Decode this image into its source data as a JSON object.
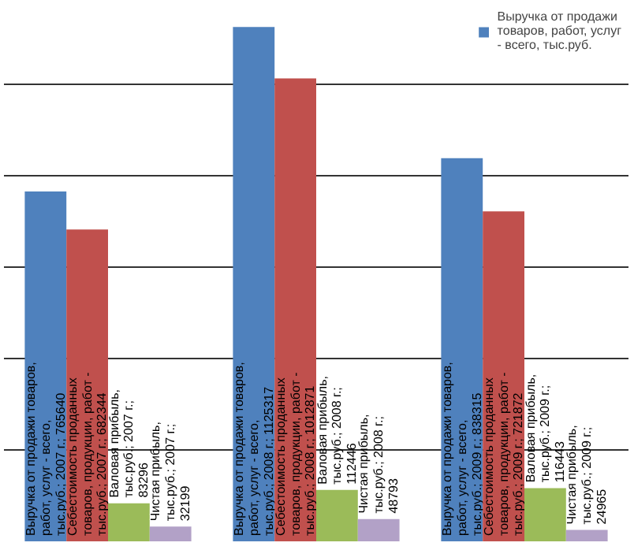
{
  "chart_data": {
    "type": "bar",
    "categories": [
      null,
      null,
      null
    ],
    "series": [
      {
        "name": "Выручка от продажи товаров, работ, услуг - всего, тыс.руб.",
        "color": "#4f81bd",
        "values": [
          765640,
          1125317,
          838315
        ],
        "value_labels": [
          "Выручка от продажи товаров, работ, услуг - всего, тыс.руб.; 2007 г.; 765640",
          "Выручка от продажи товаров, работ, услуг - всего, тыс.руб.; 2008 г.; 1125317",
          "Выручка от продажи товаров, работ, услуг - всего, тыс.руб.; 2009 г.; 838315"
        ]
      },
      {
        "color": "#c0504d",
        "values": [
          682344,
          1012871,
          721872
        ],
        "value_labels": [
          "Себестоимость проданных товаров, продукции, работ - тыс.руб.; 2007 г.; 682344",
          "Себестоимость проданных товаров, продукции, работ - тыс.руб.; 2008 г.; 1012871",
          "Себестоимость проданных товаров, продукции, работ - тыс.руб.; 2009 г.; 721872"
        ]
      },
      {
        "color": "#9bbb59",
        "values": [
          83296,
          112446,
          116443
        ],
        "value_labels": [
          "Валовая прибыль, тыс.руб.; 2007 г.; 83296",
          "Валовая прибыль, тыс.руб.; 2008 г.; 112446",
          "Валовая прибыль, тыс.руб.; 2009 г.; 116443"
        ]
      },
      {
        "color": "#b2a1c7",
        "values": [
          32199,
          48793,
          24965
        ],
        "value_labels": [
          "Чистая прибыль, тыс.руб.; 2007 г.; 32199",
          "Чистая прибыль, тыс.руб.; 2008 г.; 48793",
          "Чистая прибыль, тыс.руб.; 2009 г.; 24965"
        ]
      }
    ],
    "grid": "y",
    "tick_labels": false,
    "legend": "top right"
  }
}
